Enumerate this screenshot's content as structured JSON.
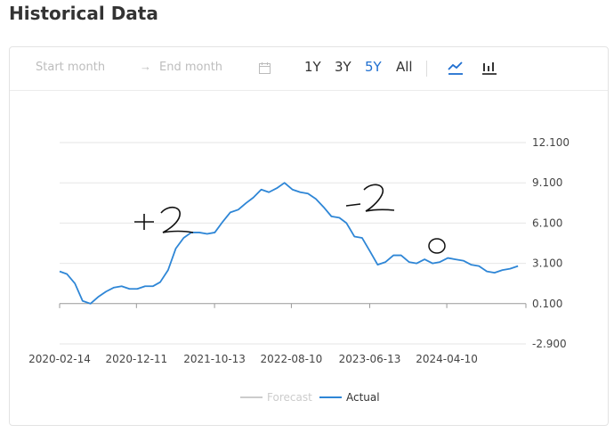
{
  "page": {
    "title": "Historical Data"
  },
  "toolbar": {
    "start_placeholder": "Start month",
    "end_placeholder": "End month",
    "range_buttons": [
      {
        "label": "1Y",
        "active": false
      },
      {
        "label": "3Y",
        "active": false
      },
      {
        "label": "5Y",
        "active": true
      },
      {
        "label": "All",
        "active": false
      }
    ],
    "icons": [
      "line-chart-icon",
      "bar-chart-icon",
      "calendar-icon",
      "arrow-right-icon"
    ],
    "active_color": "#1f6fd0"
  },
  "legend": {
    "forecast": "Forecast",
    "actual": "Actual"
  },
  "annotations": [
    "+2",
    "-2",
    "0"
  ],
  "chart_data": {
    "type": "line",
    "title": "",
    "xlabel": "",
    "ylabel": "",
    "ylim": [
      -2.9,
      12.1
    ],
    "y_ticks": [
      "12.100",
      "9.100",
      "6.100",
      "3.100",
      "0.100",
      "-2.900"
    ],
    "y_tick_values": [
      12.1,
      9.1,
      6.1,
      3.1,
      0.1,
      -2.9
    ],
    "x_tick_labels": [
      "2020-02-14",
      "2020-12-11",
      "2021-10-13",
      "2022-08-10",
      "2023-06-13",
      "2024-04-10"
    ],
    "x_range": [
      "2020-02-14",
      "2025-02-14"
    ],
    "grid": true,
    "legend_position": "bottom-center",
    "colors": {
      "actual": "#2e86d6",
      "forecast": "#cccccc"
    },
    "series": [
      {
        "name": "Actual",
        "x": [
          "2020-02",
          "2020-03",
          "2020-04",
          "2020-05",
          "2020-06",
          "2020-07",
          "2020-08",
          "2020-09",
          "2020-10",
          "2020-11",
          "2020-12",
          "2021-01",
          "2021-02",
          "2021-03",
          "2021-04",
          "2021-05",
          "2021-06",
          "2021-07",
          "2021-08",
          "2021-09",
          "2021-10",
          "2021-11",
          "2021-12",
          "2022-01",
          "2022-02",
          "2022-03",
          "2022-04",
          "2022-05",
          "2022-06",
          "2022-07",
          "2022-08",
          "2022-09",
          "2022-10",
          "2022-11",
          "2022-12",
          "2023-01",
          "2023-02",
          "2023-03",
          "2023-04",
          "2023-05",
          "2023-06",
          "2023-07",
          "2023-08",
          "2023-09",
          "2023-10",
          "2023-11",
          "2023-12",
          "2024-01",
          "2024-02",
          "2024-03",
          "2024-04",
          "2024-05",
          "2024-06",
          "2024-07",
          "2024-08",
          "2024-09",
          "2024-10",
          "2024-11",
          "2024-12",
          "2025-01"
        ],
        "values": [
          2.5,
          2.3,
          1.6,
          0.3,
          0.1,
          0.6,
          1.0,
          1.3,
          1.4,
          1.2,
          1.2,
          1.4,
          1.4,
          1.7,
          2.6,
          4.2,
          5.0,
          5.4,
          5.4,
          5.3,
          5.4,
          6.2,
          6.9,
          7.1,
          7.6,
          8.0,
          8.6,
          8.4,
          8.7,
          9.1,
          8.6,
          8.4,
          8.3,
          7.9,
          7.3,
          6.6,
          6.5,
          6.1,
          5.1,
          5.0,
          4.0,
          3.0,
          3.2,
          3.7,
          3.7,
          3.2,
          3.1,
          3.4,
          3.1,
          3.2,
          3.5,
          3.4,
          3.3,
          3.0,
          2.9,
          2.5,
          2.4,
          2.6,
          2.7,
          2.9
        ]
      },
      {
        "name": "Forecast",
        "x": [],
        "values": []
      }
    ]
  }
}
